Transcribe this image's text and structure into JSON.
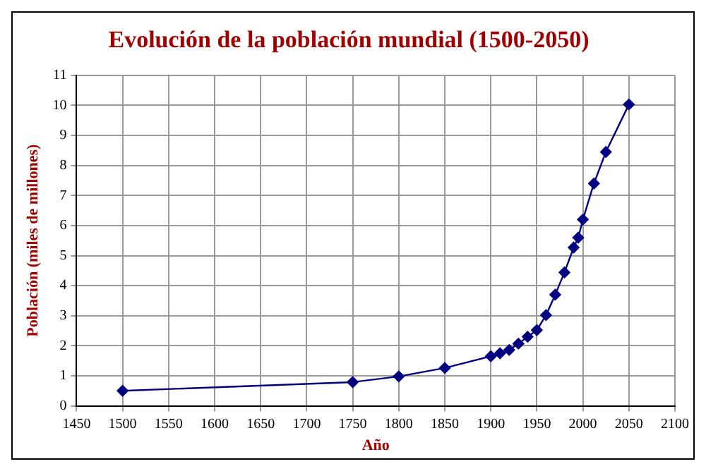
{
  "chart_data": {
    "type": "line",
    "title": "Evolución de la población mundial (1500-2050)",
    "xlabel": "Año",
    "ylabel": "Población (miles de millones)",
    "x": [
      1500,
      1750,
      1800,
      1850,
      1900,
      1910,
      1920,
      1930,
      1940,
      1950,
      1960,
      1970,
      1980,
      1990,
      1995,
      2000,
      2012,
      2025,
      2050
    ],
    "series": [
      {
        "color": "#000080",
        "values": [
          0.5,
          0.79,
          0.98,
          1.26,
          1.65,
          1.75,
          1.86,
          2.07,
          2.3,
          2.52,
          3.02,
          3.7,
          4.44,
          5.27,
          5.6,
          6.2,
          7.4,
          8.45,
          10.03
        ]
      }
    ],
    "xlim": [
      1450,
      2100
    ],
    "xticks": [
      1450,
      1500,
      1550,
      1600,
      1650,
      1700,
      1750,
      1800,
      1850,
      1900,
      1950,
      2000,
      2050,
      2100
    ],
    "ylim": [
      0,
      11
    ],
    "yticks": [
      0,
      1,
      2,
      3,
      4,
      5,
      6,
      7,
      8,
      9,
      10,
      11
    ],
    "grid": true,
    "legend": false,
    "marker": "diamond",
    "line_style": "solid"
  }
}
